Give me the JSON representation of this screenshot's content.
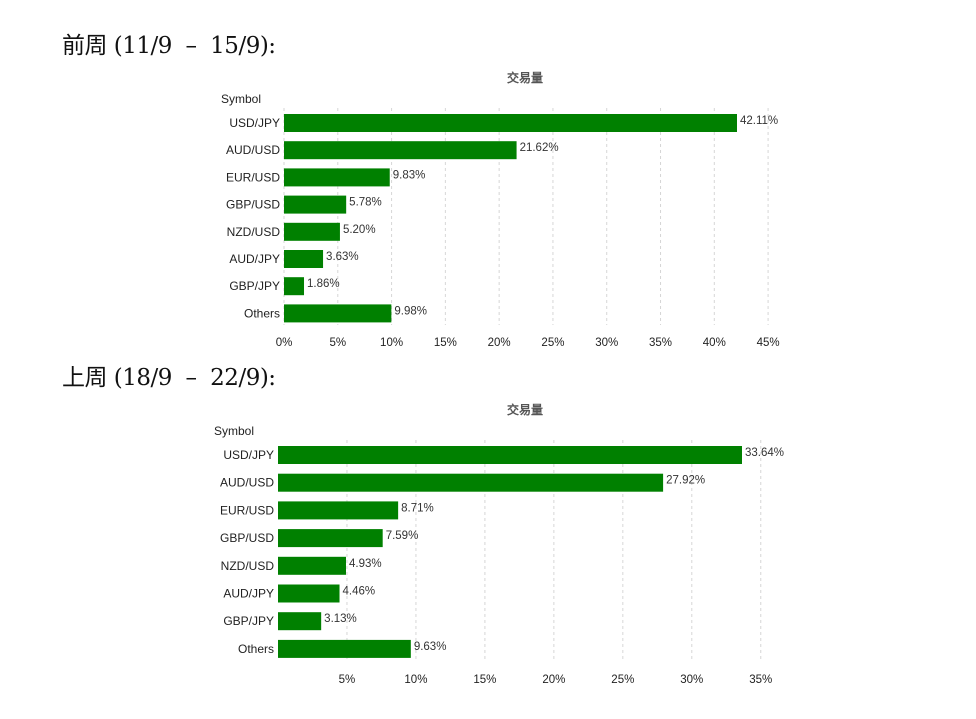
{
  "headings": {
    "first": "前周 (11/9  –  15/9):",
    "second": "上周 (18/9  –  22/9):"
  },
  "colors": {
    "bar": "#008000"
  },
  "chart_data": [
    {
      "type": "bar",
      "orientation": "horizontal",
      "title": "交易量",
      "ylabel": "Symbol",
      "categories": [
        "USD/JPY",
        "AUD/USD",
        "EUR/USD",
        "GBP/USD",
        "NZD/USD",
        "AUD/JPY",
        "GBP/JPY",
        "Others"
      ],
      "values": [
        42.11,
        21.62,
        9.83,
        5.78,
        5.2,
        3.63,
        1.86,
        9.98
      ],
      "data_labels": [
        "42.11%",
        "21.62%",
        "9.83%",
        "5.78%",
        "5.20%",
        "3.63%",
        "1.86%",
        "9.98%"
      ],
      "xlim": [
        0,
        45
      ],
      "ticks": [
        0,
        5,
        10,
        15,
        20,
        25,
        30,
        35,
        40,
        45
      ],
      "tick_labels": [
        "0%",
        "5%",
        "10%",
        "15%",
        "20%",
        "25%",
        "30%",
        "35%",
        "40%",
        "45%"
      ],
      "grid": true
    },
    {
      "type": "bar",
      "orientation": "horizontal",
      "title": "交易量",
      "ylabel": "Symbol",
      "categories": [
        "USD/JPY",
        "AUD/USD",
        "EUR/USD",
        "GBP/USD",
        "NZD/USD",
        "AUD/JPY",
        "GBP/JPY",
        "Others"
      ],
      "values": [
        33.64,
        27.92,
        8.71,
        7.59,
        4.93,
        4.46,
        3.13,
        9.63
      ],
      "data_labels": [
        "33.64%",
        "27.92%",
        "8.71%",
        "7.59%",
        "4.93%",
        "4.46%",
        "3.13%",
        "9.63%"
      ],
      "xlim": [
        0,
        35
      ],
      "ticks": [
        5,
        10,
        15,
        20,
        25,
        30,
        35
      ],
      "tick_labels": [
        "5%",
        "10%",
        "15%",
        "20%",
        "25%",
        "30%",
        "35%"
      ],
      "grid": true
    }
  ]
}
